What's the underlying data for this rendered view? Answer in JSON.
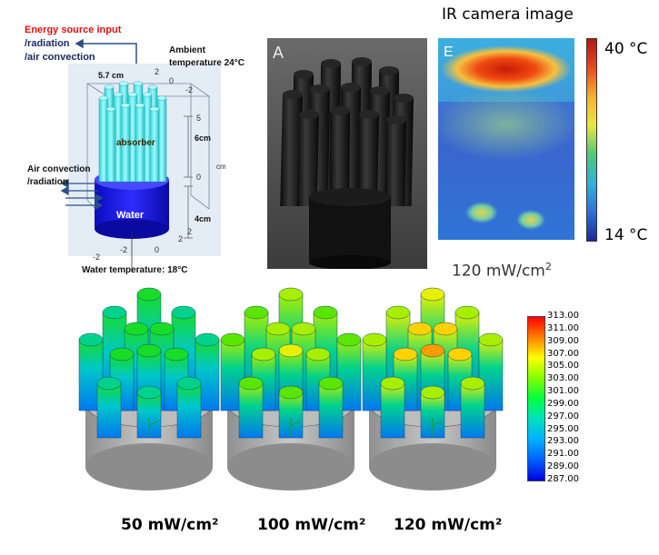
{
  "schematic": {
    "energy_title": "Energy source input",
    "energy_line1": "/radiation",
    "energy_line2": "/air convection",
    "ambient_line1": "Ambient",
    "ambient_line2": "temperature 24°C",
    "width_label": "5.7 cm",
    "absorber_label": "absorber",
    "air_line1": "Air convection",
    "air_line2": "/radiation",
    "water_label": "Water",
    "height_absorber": "6cm",
    "height_water": "4cm",
    "axis_unit": "cm",
    "water_temp": "Water temperature: 18°C",
    "axis_ticks": {
      "t0": "0",
      "tm2a": "-2",
      "t2a": "2",
      "t5": "5",
      "t0b": "0",
      "t2b": "2",
      "tm2b": "-2",
      "t0c": "0",
      "t2c": "2",
      "tm2c": "-2"
    }
  },
  "photo": {
    "panel_letter": "A"
  },
  "ir": {
    "title": "IR camera image",
    "panel_letter": "E",
    "max_label": "40 °C",
    "min_label": "14 °C",
    "power_value": "120 mW/cm",
    "power_sup": "2"
  },
  "simulations": [
    {
      "label": "50 mW/cm²",
      "level": 0.25
    },
    {
      "label": "100 mW/cm²",
      "level": 0.55
    },
    {
      "label": "120 mW/cm²",
      "level": 0.75
    }
  ],
  "colorbar": {
    "ticks": [
      "313.00",
      "311.00",
      "309.00",
      "307.00",
      "305.00",
      "303.00",
      "301.00",
      "299.00",
      "297.00",
      "295.00",
      "293.00",
      "291.00",
      "289.00",
      "287.00"
    ],
    "colors": [
      "#ff1a00",
      "#ff5a00",
      "#ff9a00",
      "#ffd200",
      "#e6f000",
      "#a8ee00",
      "#5ae600",
      "#18dc28",
      "#00d28c",
      "#00c8c8",
      "#00aaf0",
      "#0078f0",
      "#0046e6",
      "#0a14d2"
    ]
  }
}
